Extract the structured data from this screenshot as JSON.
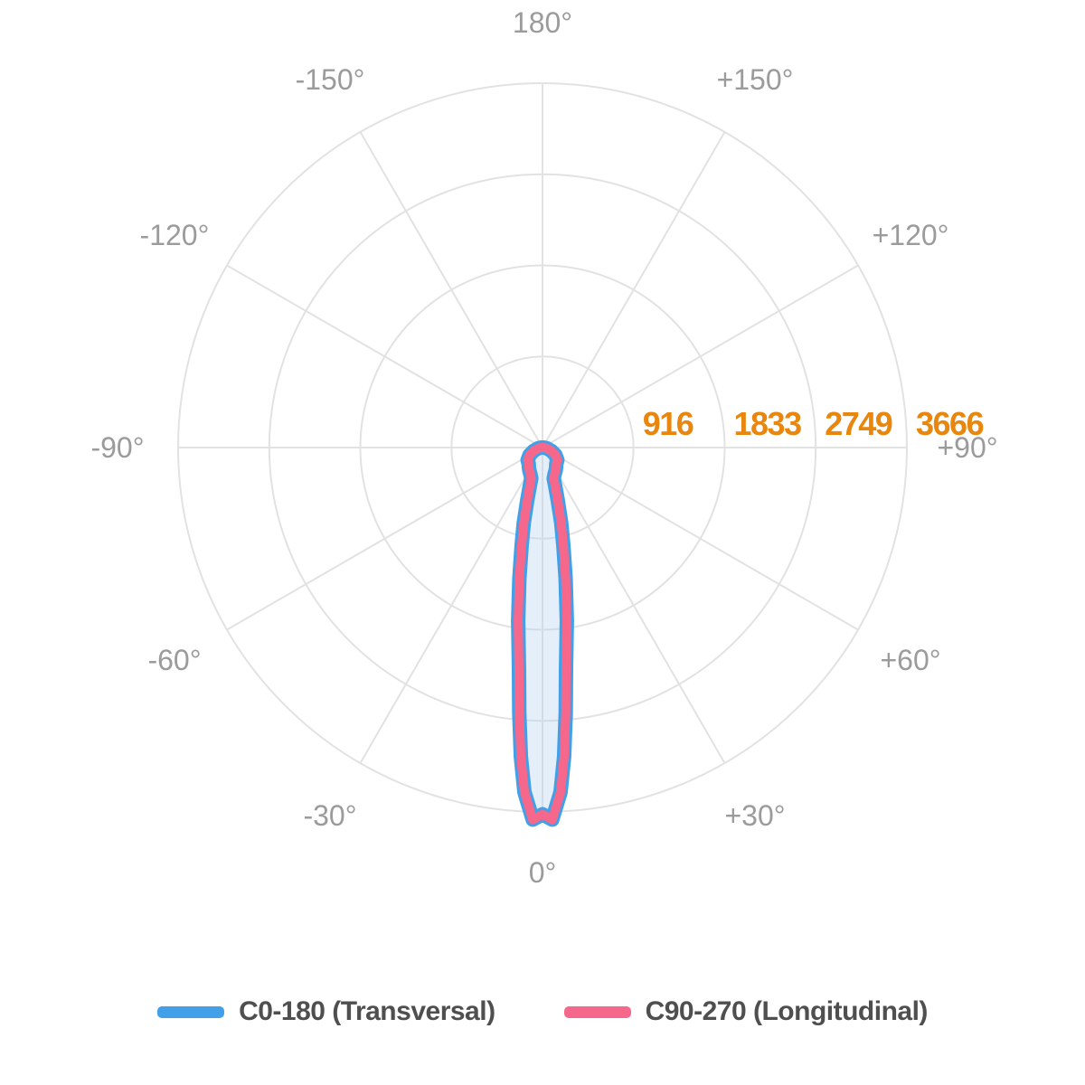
{
  "chart_data": {
    "type": "line",
    "subtype": "polar-photometric-light-distribution",
    "title": "",
    "angle_unit": "deg",
    "orientation": {
      "zero_at": "bottom",
      "positive_angles": "right-side",
      "grid": "on",
      "rings": 4
    },
    "grid": {
      "spoke_step_deg": 30,
      "angle_labels": [
        {
          "angle": 180,
          "label": "180°"
        },
        {
          "angle": -150,
          "label": "-150°"
        },
        {
          "angle": 150,
          "label": "+150°"
        },
        {
          "angle": -120,
          "label": "-120°"
        },
        {
          "angle": 120,
          "label": "+120°"
        },
        {
          "angle": -90,
          "label": "-90°"
        },
        {
          "angle": 90,
          "label": "+90°"
        },
        {
          "angle": -60,
          "label": "-60°"
        },
        {
          "angle": 60,
          "label": "+60°"
        },
        {
          "angle": -30,
          "label": "-30°"
        },
        {
          "angle": 30,
          "label": "+30°"
        },
        {
          "angle": 0,
          "label": "0°"
        }
      ],
      "radial_ticks": [
        916,
        1833,
        2749,
        3666
      ],
      "radial_max": 3666
    },
    "series": [
      {
        "name": "C0-180 (Transversal)",
        "color": "#42a0e8",
        "symmetric_about_0": true,
        "angles_deg_from_nadir": [
          0,
          1.5,
          3,
          4,
          5,
          6,
          8,
          10,
          12,
          14,
          16,
          18,
          20,
          25,
          30,
          35,
          40,
          45,
          50,
          60,
          70,
          80,
          90
        ],
        "values_cd": [
          3690,
          3745,
          3470,
          3120,
          2680,
          2260,
          1760,
          1340,
          1010,
          780,
          560,
          420,
          330,
          290,
          265,
          240,
          215,
          205,
          195,
          150,
          95,
          45,
          15
        ]
      },
      {
        "name": "C90-270 (Longitudinal)",
        "color": "#f5688c",
        "symmetric_about_0": true,
        "angles_deg_from_nadir": [
          0,
          1.5,
          3,
          4,
          5,
          6,
          8,
          10,
          12,
          14,
          16,
          18,
          20,
          25,
          30,
          35,
          40,
          45,
          50,
          60,
          70,
          80,
          90
        ],
        "values_cd": [
          3690,
          3745,
          3470,
          3120,
          2680,
          2260,
          1760,
          1340,
          1010,
          780,
          560,
          420,
          330,
          290,
          265,
          240,
          215,
          205,
          195,
          150,
          95,
          45,
          15
        ]
      }
    ],
    "beam_fill_color": "rgba(180,210,240,0.35)",
    "legend_position": "bottom"
  },
  "legend": {
    "items": [
      {
        "label": "C0-180 (Transversal)",
        "color": "#42a0e8"
      },
      {
        "label": "C90-270 (Longitudinal)",
        "color": "#f5688c"
      }
    ]
  },
  "colors": {
    "background": "#ffffff",
    "grid": "#e2e2e2",
    "angle_label": "#9b9b9b",
    "radial_label": "#e8860d",
    "legend_text": "#4f4f4f"
  }
}
